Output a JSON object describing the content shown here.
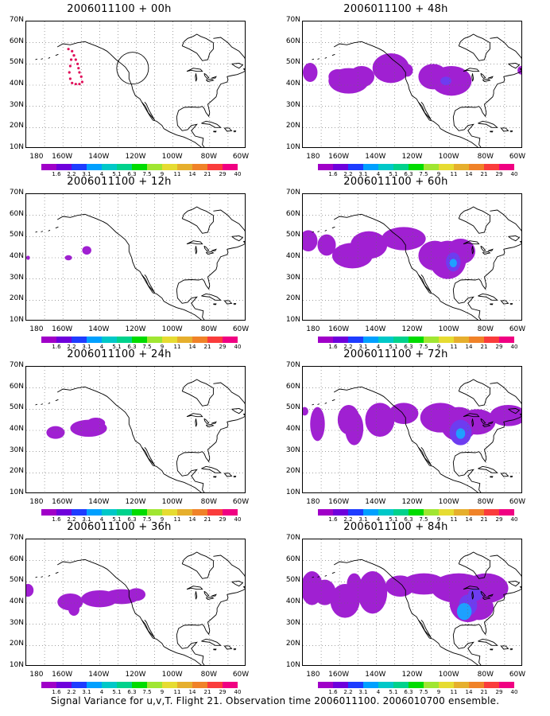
{
  "panels": [
    {
      "title": "2006011100 + 00h"
    },
    {
      "title": "2006011100 + 48h"
    },
    {
      "title": "2006011100 + 12h"
    },
    {
      "title": "2006011100 + 60h"
    },
    {
      "title": "2006011100 + 24h"
    },
    {
      "title": "2006011100 + 72h"
    },
    {
      "title": "2006011100 + 36h"
    },
    {
      "title": "2006011100 + 84h"
    }
  ],
  "axes": {
    "lat_labels": [
      "70N",
      "60N",
      "50N",
      "40N",
      "30N",
      "20N",
      "10N"
    ],
    "lon_labels": [
      "180",
      "160W",
      "140W",
      "120W",
      "100W",
      "80W",
      "60W"
    ]
  },
  "colorbar": {
    "labels": [
      "1.6",
      "2.2",
      "3.1",
      "4",
      "5.1",
      "6.3",
      "7.5",
      "9",
      "11",
      "14",
      "21",
      "29",
      "40"
    ],
    "colors": [
      "#a000c8",
      "#6e00dc",
      "#1e3cff",
      "#00a0ff",
      "#00c8c8",
      "#00d28c",
      "#00dc00",
      "#a0e632",
      "#e6dc32",
      "#e6af2d",
      "#f08228",
      "#fa3c3c",
      "#f00082"
    ]
  },
  "caption": "Signal Variance for u,v,T. Flight 21. Observation time 2006011100. 2006010700 ensemble."
}
